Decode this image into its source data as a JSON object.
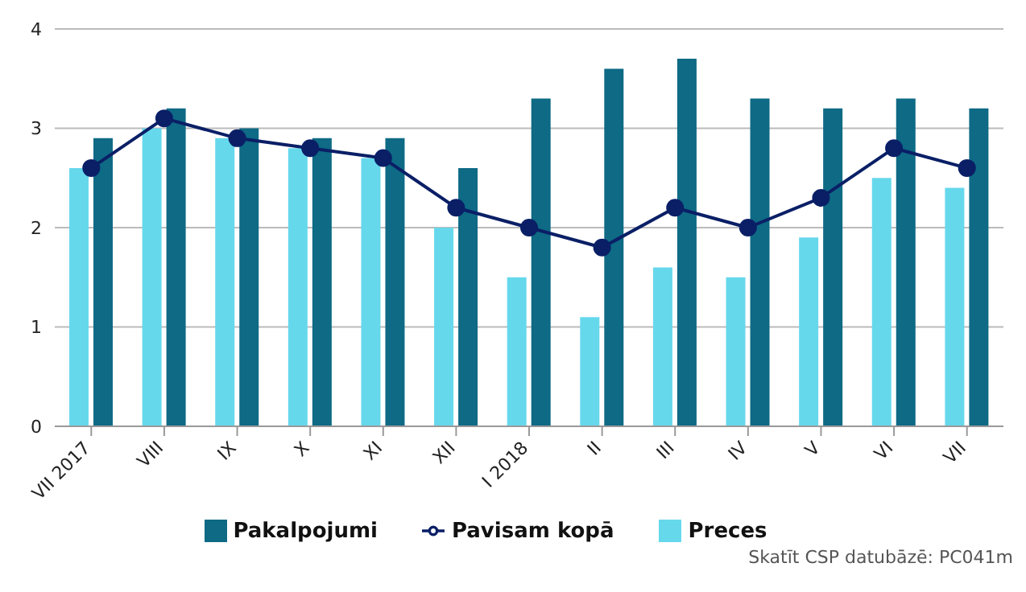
{
  "chart_data": {
    "type": "bar",
    "categories": [
      "VII 2017",
      "VIII",
      "IX",
      "X",
      "XI",
      "XII",
      "I 2018",
      "II",
      "III",
      "IV",
      "V",
      "VI",
      "VII"
    ],
    "series": [
      {
        "name": "Preces",
        "color": "#66d8ec",
        "values": [
          2.6,
          3.0,
          2.9,
          2.8,
          2.7,
          2.0,
          1.5,
          1.1,
          1.6,
          1.5,
          1.9,
          2.5,
          2.4
        ]
      },
      {
        "name": "Pakalpojumi",
        "color": "#0e6a85",
        "values": [
          2.9,
          3.2,
          3.0,
          2.9,
          2.9,
          2.6,
          3.3,
          3.6,
          3.7,
          3.3,
          3.2,
          3.3,
          3.2
        ]
      },
      {
        "name": "Pavisam kopā",
        "type": "line",
        "color": "#0a1f66",
        "marker": "circle",
        "values": [
          2.6,
          3.1,
          2.9,
          2.8,
          2.7,
          2.2,
          2.0,
          1.8,
          2.2,
          2.0,
          2.3,
          2.8,
          2.6
        ]
      }
    ],
    "ylim": [
      0,
      4
    ],
    "yticks": [
      0,
      1,
      2,
      3,
      4
    ],
    "grid": "y",
    "legend": "bottom",
    "annotations": [
      "Skatīt CSP datubāzē: PC041m"
    ]
  }
}
